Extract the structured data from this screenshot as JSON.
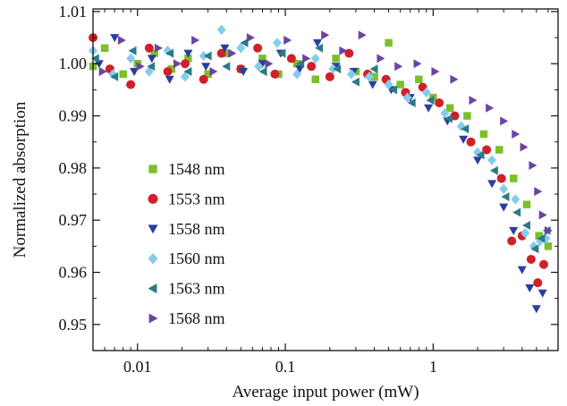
{
  "chart_data": {
    "type": "scatter",
    "xlabel": "Average input power (mW)",
    "ylabel": "Normalized absorption",
    "xscale": "log",
    "xlim": [
      0.005,
      7
    ],
    "ylim": [
      0.945,
      1.0105
    ],
    "x_ticks": [
      0.01,
      0.1,
      1
    ],
    "x_tick_labels": [
      "0.01",
      "0.1",
      "1"
    ],
    "y_ticks": [
      0.95,
      0.96,
      0.97,
      0.98,
      0.99,
      1.0,
      1.01
    ],
    "y_tick_labels": [
      "0.95",
      "0.96",
      "0.97",
      "0.98",
      "0.99",
      "1.00",
      "1.01"
    ],
    "grid": false,
    "legend_position": "left",
    "series": [
      {
        "name": "1548 nm",
        "color": "#7cbf2a",
        "marker": "square",
        "points": [
          [
            0.005,
            0.9995
          ],
          [
            0.006,
            1.003
          ],
          [
            0.008,
            0.998
          ],
          [
            0.01,
            1.0
          ],
          [
            0.013,
            1.002
          ],
          [
            0.017,
            0.999
          ],
          [
            0.022,
            1.001
          ],
          [
            0.03,
            0.998
          ],
          [
            0.04,
            1.002
          ],
          [
            0.05,
            0.999
          ],
          [
            0.07,
            1.001
          ],
          [
            0.09,
            0.998
          ],
          [
            0.12,
            1.0
          ],
          [
            0.16,
            0.997
          ],
          [
            0.22,
            1.001
          ],
          [
            0.3,
            0.9985
          ],
          [
            0.4,
            0.9975
          ],
          [
            0.5,
            1.004
          ],
          [
            0.6,
            0.996
          ],
          [
            0.8,
            0.997
          ],
          [
            1.0,
            0.9935
          ],
          [
            1.3,
            0.9915
          ],
          [
            1.7,
            0.99
          ],
          [
            2.2,
            0.9865
          ],
          [
            2.8,
            0.9835
          ],
          [
            3.5,
            0.978
          ],
          [
            4.3,
            0.973
          ],
          [
            5.2,
            0.967
          ],
          [
            6.0,
            0.965
          ]
        ]
      },
      {
        "name": "1553 nm",
        "color": "#d0202a",
        "marker": "circle",
        "points": [
          [
            0.005,
            1.005
          ],
          [
            0.0065,
            0.999
          ],
          [
            0.009,
            0.996
          ],
          [
            0.012,
            1.003
          ],
          [
            0.016,
            0.9985
          ],
          [
            0.021,
            1.0
          ],
          [
            0.028,
            0.997
          ],
          [
            0.037,
            1.002
          ],
          [
            0.05,
            0.999
          ],
          [
            0.065,
            1.003
          ],
          [
            0.085,
            0.998
          ],
          [
            0.11,
            1.001
          ],
          [
            0.15,
            0.9995
          ],
          [
            0.2,
            0.9975
          ],
          [
            0.27,
            1.002
          ],
          [
            0.36,
            0.998
          ],
          [
            0.48,
            0.997
          ],
          [
            0.65,
            0.9945
          ],
          [
            0.85,
            0.9955
          ],
          [
            1.1,
            0.9925
          ],
          [
            1.4,
            0.99
          ],
          [
            1.8,
            0.985
          ],
          [
            2.3,
            0.9835
          ],
          [
            2.9,
            0.978
          ],
          [
            3.4,
            0.966
          ],
          [
            4.0,
            0.967
          ],
          [
            4.6,
            0.9625
          ],
          [
            5.1,
            0.958
          ],
          [
            5.6,
            0.9615
          ]
        ]
      },
      {
        "name": "1558 nm",
        "color": "#2a3e9e",
        "marker": "triangle-down",
        "points": [
          [
            0.0055,
            1.0
          ],
          [
            0.007,
            1.005
          ],
          [
            0.0095,
            0.9985
          ],
          [
            0.0125,
            1.001
          ],
          [
            0.0165,
            0.997
          ],
          [
            0.022,
            1.002
          ],
          [
            0.029,
            0.9995
          ],
          [
            0.039,
            1.003
          ],
          [
            0.052,
            0.9985
          ],
          [
            0.07,
            1.0
          ],
          [
            0.093,
            1.002
          ],
          [
            0.125,
            0.999
          ],
          [
            0.165,
            1.004
          ],
          [
            0.22,
            0.9995
          ],
          [
            0.29,
            0.9985
          ],
          [
            0.39,
            0.996
          ],
          [
            0.52,
            0.995
          ],
          [
            0.7,
            0.9935
          ],
          [
            0.93,
            0.9915
          ],
          [
            1.25,
            0.989
          ],
          [
            1.6,
            0.9855
          ],
          [
            2.0,
            0.9815
          ],
          [
            2.5,
            0.977
          ],
          [
            3.0,
            0.9725
          ],
          [
            3.5,
            0.968
          ],
          [
            4.0,
            0.9605
          ],
          [
            4.5,
            0.957
          ],
          [
            5.0,
            0.953
          ],
          [
            5.5,
            0.956
          ]
        ]
      },
      {
        "name": "1560 nm",
        "color": "#86cbeb",
        "marker": "diamond",
        "points": [
          [
            0.005,
            1.0025
          ],
          [
            0.0068,
            0.998
          ],
          [
            0.009,
            1.001
          ],
          [
            0.012,
            0.9985
          ],
          [
            0.016,
            1.0025
          ],
          [
            0.021,
            0.9975
          ],
          [
            0.028,
            1.0015
          ],
          [
            0.037,
            1.0065
          ],
          [
            0.05,
            1.003
          ],
          [
            0.066,
            0.9995
          ],
          [
            0.088,
            1.004
          ],
          [
            0.12,
            0.998
          ],
          [
            0.16,
            1.001
          ],
          [
            0.21,
            0.999
          ],
          [
            0.28,
            0.998
          ],
          [
            0.37,
            0.9975
          ],
          [
            0.5,
            0.996
          ],
          [
            0.67,
            0.9935
          ],
          [
            0.9,
            0.9945
          ],
          [
            1.2,
            0.9905
          ],
          [
            1.55,
            0.988
          ],
          [
            2.0,
            0.983
          ],
          [
            2.5,
            0.9815
          ],
          [
            3.0,
            0.976
          ],
          [
            3.6,
            0.974
          ],
          [
            4.2,
            0.9675
          ],
          [
            4.8,
            0.965
          ],
          [
            5.3,
            0.966
          ],
          [
            5.8,
            0.9665
          ]
        ]
      },
      {
        "name": "1563 nm",
        "color": "#2b7a86",
        "marker": "triangle-left",
        "points": [
          [
            0.0052,
            1.001
          ],
          [
            0.007,
            0.9975
          ],
          [
            0.0093,
            1.0025
          ],
          [
            0.0124,
            0.9995
          ],
          [
            0.0166,
            1.002
          ],
          [
            0.022,
            0.9985
          ],
          [
            0.03,
            1.0015
          ],
          [
            0.04,
            0.9995
          ],
          [
            0.053,
            1.004
          ],
          [
            0.071,
            0.9985
          ],
          [
            0.095,
            1.002
          ],
          [
            0.127,
            1.0
          ],
          [
            0.17,
            1.003
          ],
          [
            0.225,
            0.999
          ],
          [
            0.3,
            0.9965
          ],
          [
            0.4,
            0.999
          ],
          [
            0.54,
            0.995
          ],
          [
            0.72,
            0.9925
          ],
          [
            0.96,
            0.993
          ],
          [
            1.28,
            0.9895
          ],
          [
            1.65,
            0.9875
          ],
          [
            2.1,
            0.9825
          ],
          [
            2.6,
            0.9795
          ],
          [
            3.1,
            0.9745
          ],
          [
            3.7,
            0.9715
          ],
          [
            4.3,
            0.969
          ],
          [
            4.9,
            0.9645
          ],
          [
            5.4,
            0.9665
          ],
          [
            5.9,
            0.968
          ]
        ]
      },
      {
        "name": "1568 nm",
        "color": "#6a44a3",
        "marker": "triangle-right",
        "points": [
          [
            0.0058,
            0.9985
          ],
          [
            0.0078,
            1.0045
          ],
          [
            0.0104,
            0.9995
          ],
          [
            0.0138,
            1.003
          ],
          [
            0.0185,
            1.0
          ],
          [
            0.0245,
            1.0045
          ],
          [
            0.0325,
            0.9985
          ],
          [
            0.0435,
            1.002
          ],
          [
            0.058,
            1.005
          ],
          [
            0.077,
            1.0
          ],
          [
            0.103,
            1.0045
          ],
          [
            0.138,
            1.001
          ],
          [
            0.185,
            1.0055
          ],
          [
            0.245,
            1.0025
          ],
          [
            0.33,
            1.0055
          ],
          [
            0.44,
            1.001
          ],
          [
            0.58,
            0.9995
          ],
          [
            0.78,
            1.0
          ],
          [
            1.03,
            0.9985
          ],
          [
            1.38,
            0.997
          ],
          [
            1.85,
            0.993
          ],
          [
            2.4,
            0.9915
          ],
          [
            3.0,
            0.989
          ],
          [
            3.6,
            0.9865
          ],
          [
            4.1,
            0.984
          ],
          [
            4.7,
            0.9805
          ],
          [
            5.1,
            0.9755
          ],
          [
            5.5,
            0.971
          ],
          [
            6.0,
            0.968
          ]
        ]
      }
    ]
  }
}
